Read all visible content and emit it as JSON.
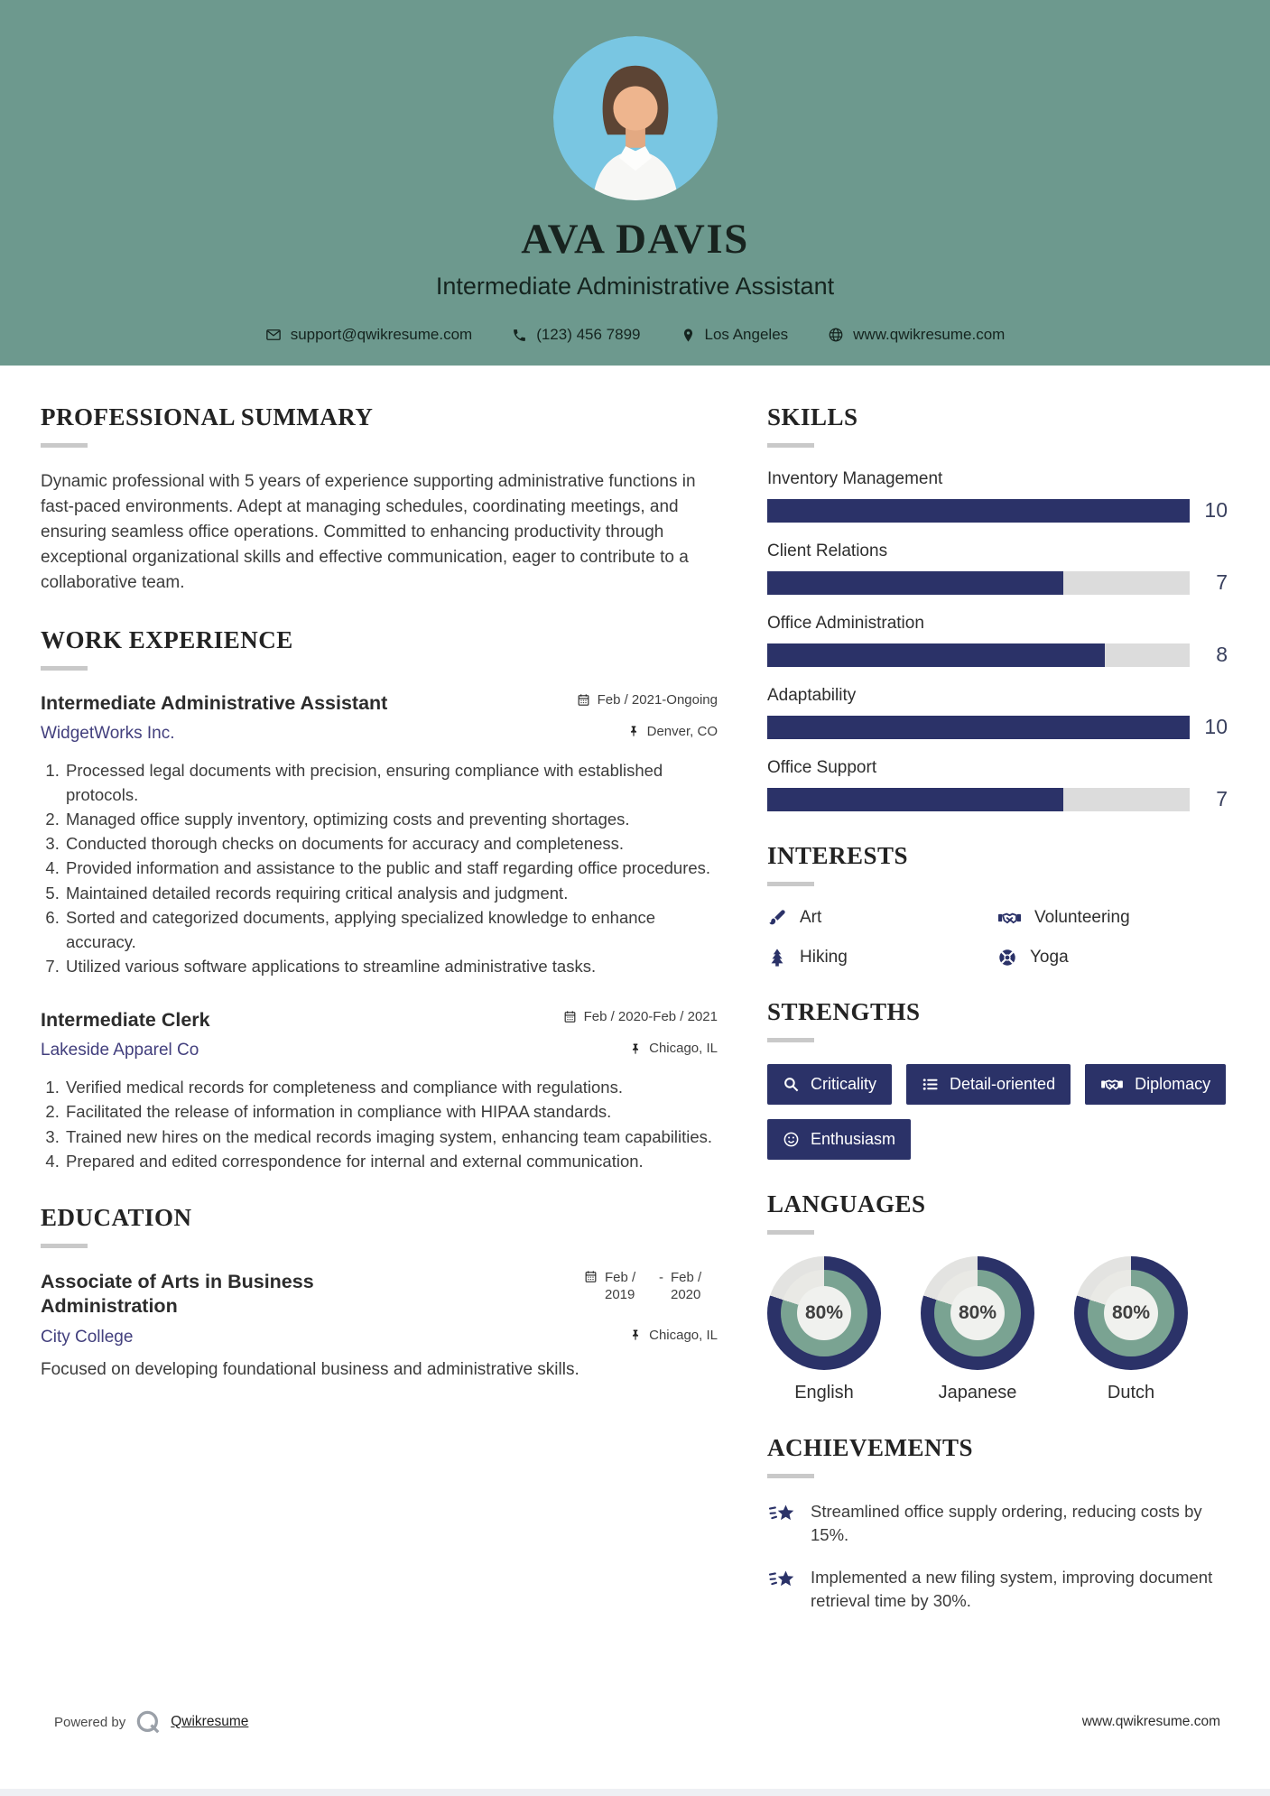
{
  "header": {
    "name": "AVA DAVIS",
    "title": "Intermediate Administrative Assistant",
    "contact": {
      "email": "support@qwikresume.com",
      "phone": "(123) 456 7899",
      "location": "Los Angeles",
      "website": "www.qwikresume.com"
    }
  },
  "summary": {
    "heading": "PROFESSIONAL SUMMARY",
    "text": "Dynamic professional with 5 years of experience supporting administrative functions in fast-paced environments. Adept at managing schedules, coordinating meetings, and ensuring seamless office operations. Committed to enhancing productivity through exceptional organizational skills and effective communication, eager to contribute to a collaborative team."
  },
  "experience": {
    "heading": "WORK EXPERIENCE",
    "jobs": [
      {
        "title": "Intermediate Administrative Assistant",
        "company": "WidgetWorks Inc.",
        "dates": "Feb / 2021-Ongoing",
        "location": "Denver, CO",
        "bullets": [
          "Processed legal documents with precision, ensuring compliance with established protocols.",
          "Managed office supply inventory, optimizing costs and preventing shortages.",
          "Conducted thorough checks on documents for accuracy and completeness.",
          "Provided information and assistance to the public and staff regarding office procedures.",
          "Maintained detailed records requiring critical analysis and judgment.",
          "Sorted and categorized documents, applying specialized knowledge to enhance accuracy.",
          "Utilized various software applications to streamline administrative tasks."
        ]
      },
      {
        "title": "Intermediate Clerk",
        "company": "Lakeside Apparel Co",
        "dates": "Feb / 2020-Feb / 2021",
        "location": "Chicago, IL",
        "bullets": [
          "Verified medical records for completeness and compliance with regulations.",
          "Facilitated the release of information in compliance with HIPAA standards.",
          "Trained new hires on the medical records imaging system, enhancing team capabilities.",
          "Prepared and edited correspondence for internal and external communication."
        ]
      }
    ]
  },
  "education": {
    "heading": "EDUCATION",
    "degree": "Associate of Arts in Business Administration",
    "school": "City College",
    "date_start": "Feb / 2019",
    "date_separator": "-",
    "date_end": "Feb / 2020",
    "location": "Chicago, IL",
    "description": "Focused on developing foundational business and administrative skills."
  },
  "skills": {
    "heading": "SKILLS",
    "max": 10,
    "items": [
      {
        "name": "Inventory Management",
        "value": 10
      },
      {
        "name": "Client Relations",
        "value": 7
      },
      {
        "name": "Office Administration",
        "value": 8
      },
      {
        "name": "Adaptability",
        "value": 10
      },
      {
        "name": "Office Support",
        "value": 7
      }
    ]
  },
  "interests": {
    "heading": "INTERESTS",
    "items": [
      {
        "icon": "paintbrush-icon",
        "label": "Art"
      },
      {
        "icon": "handshake-icon",
        "label": "Volunteering"
      },
      {
        "icon": "tree-icon",
        "label": "Hiking"
      },
      {
        "icon": "lifebuoy-icon",
        "label": "Yoga"
      }
    ]
  },
  "strengths": {
    "heading": "STRENGTHS",
    "items": [
      {
        "icon": "magnifier-icon",
        "label": "Criticality"
      },
      {
        "icon": "list-icon",
        "label": "Detail-oriented"
      },
      {
        "icon": "handshake-icon",
        "label": "Diplomacy"
      },
      {
        "icon": "smiley-icon",
        "label": "Enthusiasm"
      }
    ]
  },
  "languages": {
    "heading": "LANGUAGES",
    "items": [
      {
        "name": "English",
        "percent": 80,
        "percent_label": "80%"
      },
      {
        "name": "Japanese",
        "percent": 80,
        "percent_label": "80%"
      },
      {
        "name": "Dutch",
        "percent": 80,
        "percent_label": "80%"
      }
    ]
  },
  "achievements": {
    "heading": "ACHIEVEMENTS",
    "items": [
      "Streamlined office supply ordering, reducing costs by 15%.",
      "Implemented a new filing system, improving document retrieval time by 30%."
    ]
  },
  "footer": {
    "powered_by": "Powered by",
    "brand": "Qwikresume",
    "website": "www.qwikresume.com"
  },
  "colors": {
    "header_bg": "#6d998e",
    "accent_navy": "#2b3268",
    "bar_track": "#dcdcdc",
    "link_indigo": "#423f7d",
    "donut_inner": "#7aa392",
    "donut_track_outer": "#e3e3e1",
    "donut_track_inner": "#e9e9e5"
  }
}
